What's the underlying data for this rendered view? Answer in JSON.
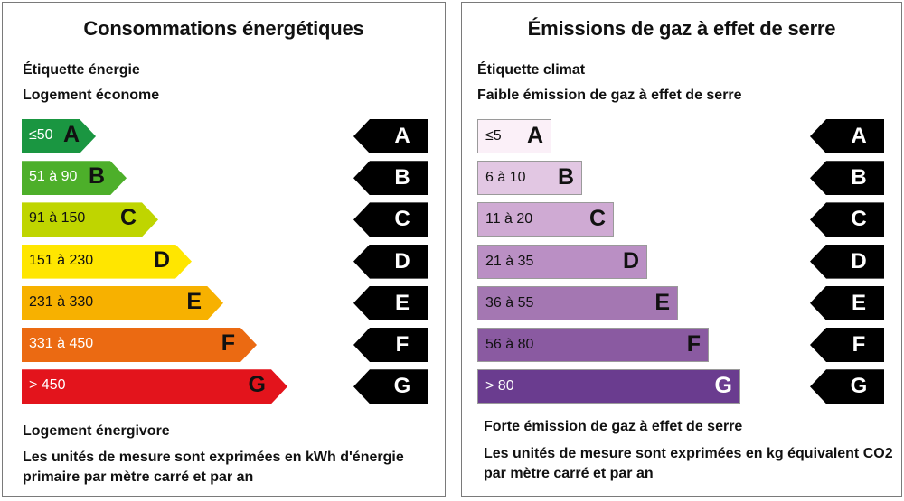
{
  "energy": {
    "title": "Consommations énergétiques",
    "label_title": "Étiquette énergie",
    "label_top": "Logement économe",
    "label_bottom": "Logement énergivore",
    "units_note": "Les unités de mesure sont exprimées en kWh d'énergie primaire par mètre carré et par an",
    "classes": [
      {
        "range": "≤50",
        "letter": "A",
        "color": "#1a9641",
        "text_color": "#ffffff"
      },
      {
        "range": "51 à 90",
        "letter": "B",
        "color": "#4daf2a",
        "text_color": "#ffffff"
      },
      {
        "range": "91 à 150",
        "letter": "C",
        "color": "#bfd500",
        "text_color": "#111111"
      },
      {
        "range": "151 à 230",
        "letter": "D",
        "color": "#ffe600",
        "text_color": "#111111"
      },
      {
        "range": "231 à 330",
        "letter": "E",
        "color": "#f7b100",
        "text_color": "#111111"
      },
      {
        "range": "331 à 450",
        "letter": "F",
        "color": "#eb6a12",
        "text_color": "#ffffff"
      },
      {
        "range": "> 450",
        "letter": "G",
        "color": "#e3141c",
        "text_color": "#ffffff"
      }
    ]
  },
  "climate": {
    "title": "Émissions de gaz à effet de serre",
    "label_title": "Étiquette climat",
    "label_top": "Faible émission de gaz à effet de serre",
    "label_bottom": "Forte émission de gaz à effet de serre",
    "units_note": "Les unités de mesure sont exprimées en kg équivalent CO2 par mètre carré et par an",
    "classes": [
      {
        "range": "≤5",
        "letter": "A",
        "color": "#fbf0f8",
        "text_color": "#111111"
      },
      {
        "range": "6 à 10",
        "letter": "B",
        "color": "#e2c7e3",
        "text_color": "#111111"
      },
      {
        "range": "11 à 20",
        "letter": "C",
        "color": "#cfaad3",
        "text_color": "#111111"
      },
      {
        "range": "21 à 35",
        "letter": "D",
        "color": "#ba8fc4",
        "text_color": "#111111"
      },
      {
        "range": "36 à 55",
        "letter": "E",
        "color": "#a477b2",
        "text_color": "#111111"
      },
      {
        "range": "56 à 80",
        "letter": "F",
        "color": "#8a5aa1",
        "text_color": "#111111"
      },
      {
        "range": "> 80",
        "letter": "G",
        "color": "#6a3c8f",
        "text_color": "#ffffff"
      }
    ]
  },
  "tags": [
    "A",
    "B",
    "C",
    "D",
    "E",
    "F",
    "G"
  ]
}
